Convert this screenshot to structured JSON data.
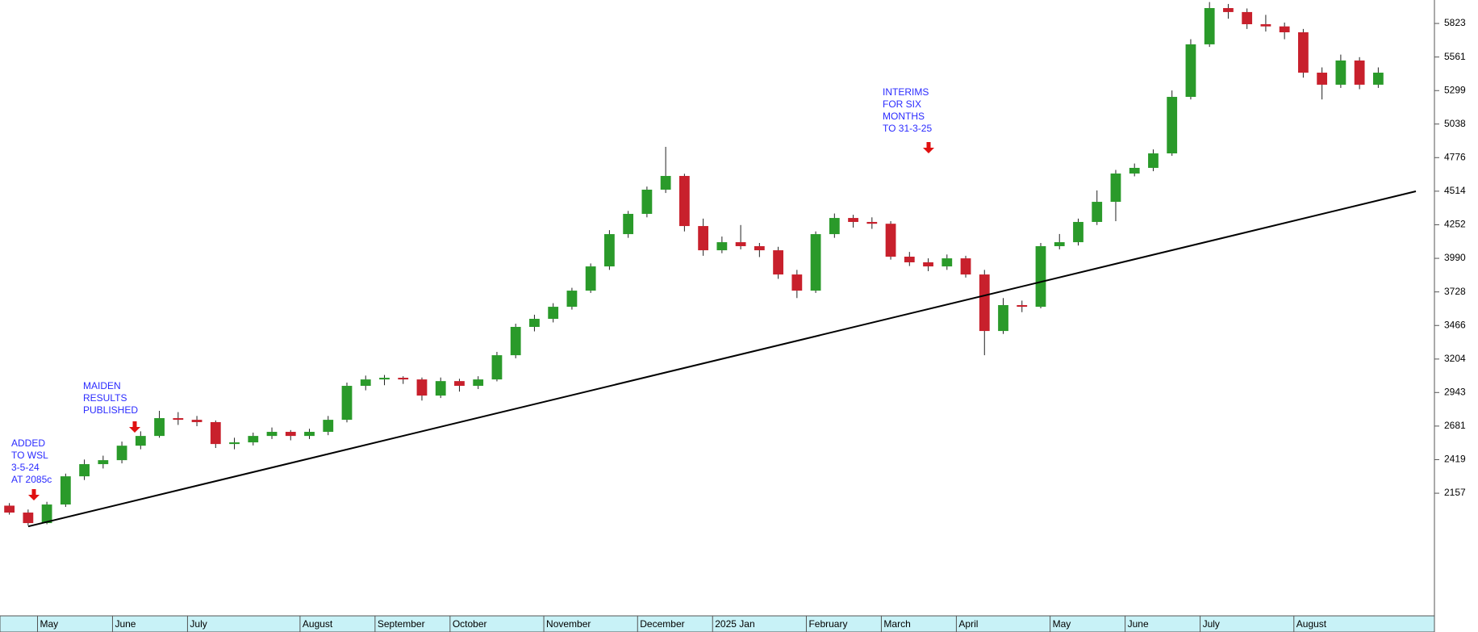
{
  "chart_data": {
    "type": "candlestick",
    "categories": [
      null,
      null,
      "May",
      null,
      null,
      null,
      "June",
      null,
      null,
      null,
      "July",
      null,
      null,
      null,
      null,
      null,
      "August",
      null,
      null,
      null,
      "September",
      null,
      null,
      null,
      "October",
      null,
      null,
      null,
      null,
      "November",
      null,
      null,
      null,
      null,
      "December",
      null,
      null,
      null,
      "2025 Jan",
      null,
      null,
      null,
      null,
      "February",
      null,
      null,
      null,
      "March",
      null,
      null,
      null,
      "April",
      null,
      null,
      null,
      null,
      "May",
      null,
      null,
      null,
      "June",
      null,
      null,
      null,
      "July",
      null,
      null,
      null,
      null,
      "August",
      null,
      null,
      null,
      null
    ],
    "open": [
      2060,
      2006,
      1924,
      2069,
      2289,
      2384,
      2415,
      2528,
      2604,
      2743,
      2730,
      2712,
      2541,
      2554,
      2604,
      2636,
      2604,
      2636,
      2730,
      2995,
      3045,
      3058,
      3045,
      2919,
      3032,
      2995,
      3045,
      3234,
      3455,
      3518,
      3612,
      3738,
      3927,
      4179,
      4337,
      4526,
      4633,
      4242,
      4053,
      4116,
      4085,
      4053,
      3864,
      3738,
      4179,
      4305,
      4274,
      4260,
      4003,
      3959,
      3927,
      3990,
      3864,
      3423,
      3625,
      3612,
      4085,
      4116,
      4274,
      4431,
      4652,
      4696,
      4809,
      5250,
      5660,
      5943,
      5912,
      5817,
      5800,
      5754,
      5439,
      5345,
      5534,
      5345
    ],
    "high": [
      2080,
      2030,
      2090,
      2310,
      2420,
      2450,
      2560,
      2640,
      2800,
      2790,
      2760,
      2725,
      2590,
      2630,
      2670,
      2650,
      2660,
      2760,
      3020,
      3075,
      3080,
      3070,
      3060,
      3060,
      3050,
      3070,
      3260,
      3480,
      3550,
      3640,
      3760,
      3950,
      4210,
      4360,
      4550,
      4860,
      4650,
      4300,
      4160,
      4250,
      4110,
      4080,
      3900,
      4200,
      4340,
      4330,
      4310,
      4280,
      4040,
      3990,
      4020,
      4010,
      3900,
      3680,
      3660,
      4110,
      4180,
      4300,
      4520,
      4680,
      4730,
      4840,
      5300,
      5700,
      5990,
      5975,
      5940,
      5890,
      5830,
      5780,
      5480,
      5580,
      5560,
      5480
    ],
    "low": [
      1990,
      1905,
      1915,
      2050,
      2260,
      2350,
      2390,
      2500,
      2590,
      2690,
      2680,
      2510,
      2500,
      2530,
      2580,
      2570,
      2580,
      2610,
      2710,
      2960,
      3000,
      3010,
      2880,
      2900,
      2950,
      2970,
      3030,
      3210,
      3420,
      3490,
      3590,
      3720,
      3900,
      4150,
      4310,
      4500,
      4200,
      4010,
      4030,
      4060,
      4000,
      3830,
      3680,
      3720,
      4150,
      4230,
      4220,
      3980,
      3930,
      3890,
      3900,
      3840,
      3234,
      3400,
      3570,
      3600,
      4060,
      4090,
      4250,
      4280,
      4630,
      4670,
      4790,
      5230,
      5640,
      5860,
      5780,
      5760,
      5700,
      5400,
      5230,
      5320,
      5310,
      5320
    ],
    "close": [
      2006,
      1924,
      2069,
      2289,
      2384,
      2415,
      2528,
      2604,
      2743,
      2730,
      2712,
      2541,
      2554,
      2604,
      2636,
      2604,
      2636,
      2730,
      2995,
      3045,
      3058,
      3045,
      2919,
      3032,
      2995,
      3045,
      3234,
      3455,
      3518,
      3612,
      3738,
      3927,
      4179,
      4337,
      4526,
      4633,
      4242,
      4053,
      4116,
      4085,
      4053,
      3864,
      3738,
      4179,
      4305,
      4274,
      4260,
      4003,
      3959,
      3927,
      3990,
      3864,
      3423,
      3625,
      3612,
      4085,
      4116,
      4274,
      4431,
      4652,
      4696,
      4809,
      5250,
      5660,
      5943,
      5912,
      5817,
      5800,
      5754,
      5439,
      5345,
      5534,
      5345,
      5439
    ],
    "up_color": "#2a9a2a",
    "down_color": "#c8202c",
    "ylim": [
      1200,
      6006
    ],
    "yticks": [
      2157,
      2419,
      2681,
      2943,
      3204,
      3466,
      3728,
      3990,
      4252,
      4514,
      4776,
      5038,
      5299,
      5561,
      5823
    ],
    "trendline": {
      "values": [
        1898,
        4513
      ],
      "color": "#000000"
    },
    "annotations": [
      {
        "lines": [
          "ADDED",
          "TO WSL",
          "3-5-24",
          "AT 2085c"
        ]
      },
      {
        "lines": [
          "MAIDEN",
          "RESULTS",
          "PUBLISHED"
        ]
      },
      {
        "lines": [
          "INTERIMS",
          "FOR SIX",
          "MONTHS",
          "TO 31-3-25"
        ]
      }
    ]
  }
}
